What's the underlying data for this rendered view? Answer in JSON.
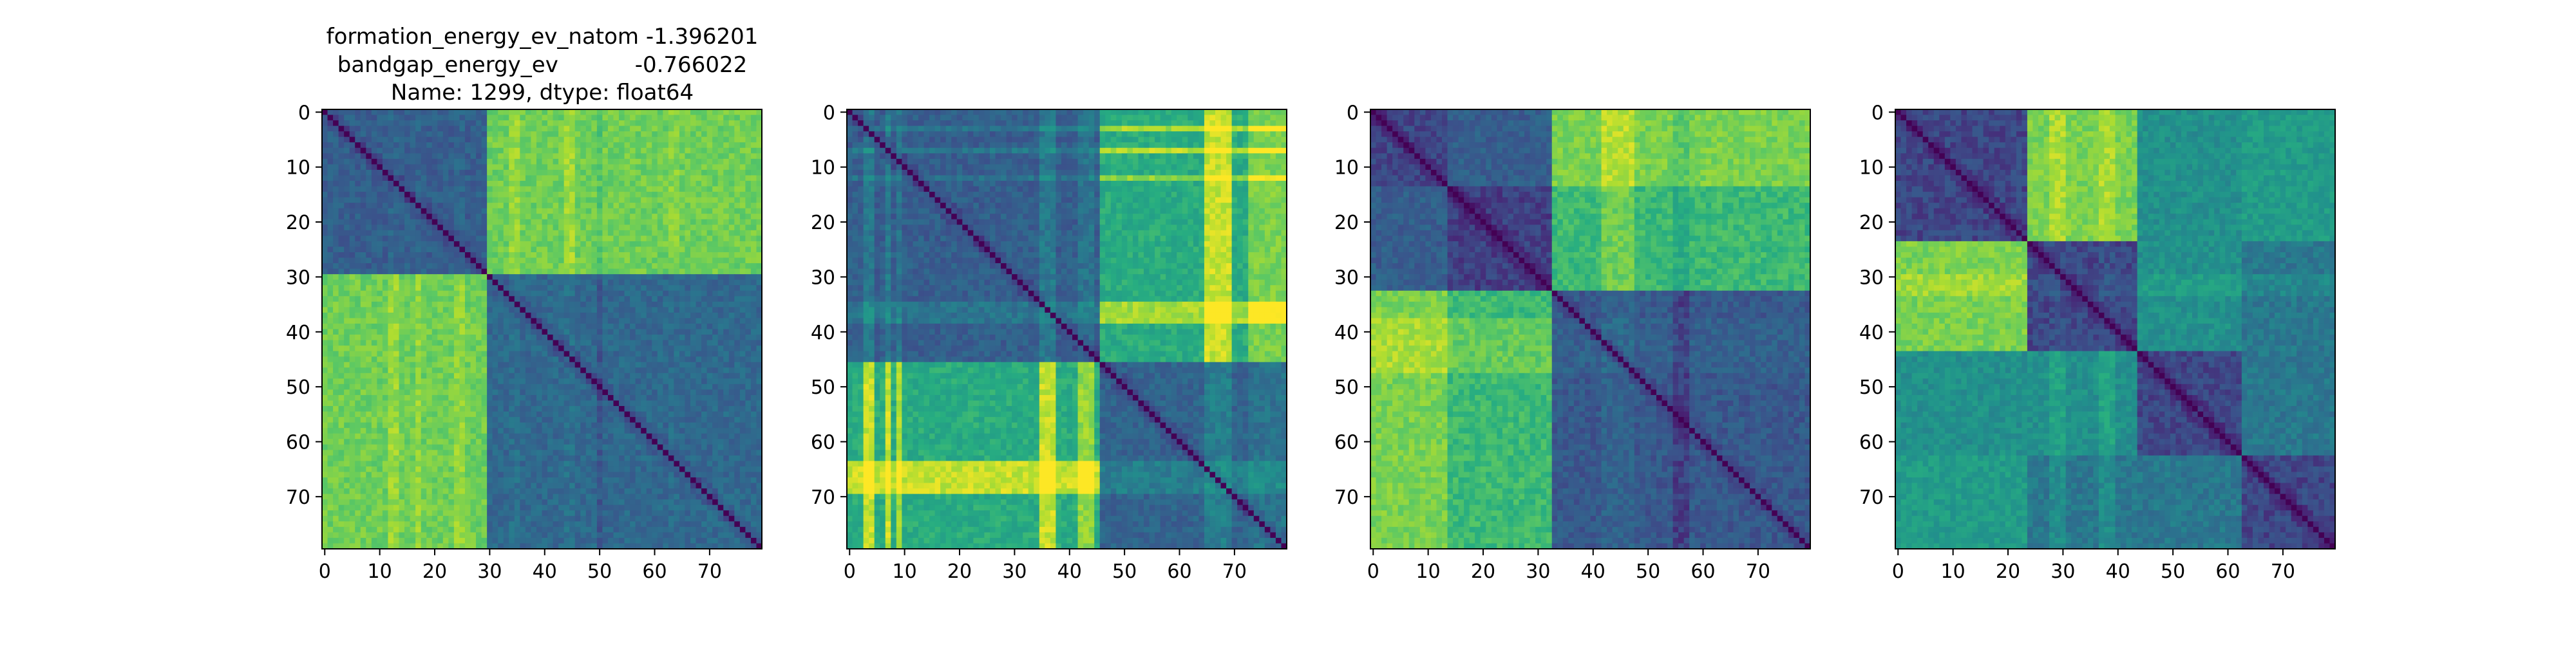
{
  "chart_data": [
    {
      "type": "heatmap",
      "title_lines": [
        "formation_energy_ev_natom   -1.396201",
        "bandgap_energy_ev           -0.766022",
        "Name: 1299, dtype: float64"
      ],
      "rows": 80,
      "cols": 80,
      "xlim": [
        0,
        80
      ],
      "ylim": [
        80,
        0
      ],
      "xticks": [
        0,
        10,
        20,
        30,
        40,
        50,
        60,
        70
      ],
      "yticks": [
        0,
        10,
        20,
        30,
        40,
        50,
        60,
        70
      ],
      "colormap": "viridis",
      "diagonal_value": 0,
      "block_boundaries": [
        30
      ],
      "block_levels": [
        [
          0.3,
          0.78
        ],
        [
          0.78,
          0.34
        ]
      ],
      "stripes": [
        {
          "axis": "col",
          "range": [
            12,
            14
          ],
          "boost": 0.07
        },
        {
          "axis": "col",
          "range": [
            17,
            18
          ],
          "boost": 0.06
        },
        {
          "axis": "col",
          "range": [
            24,
            26
          ],
          "boost": 0.06
        },
        {
          "axis": "col",
          "range": [
            34,
            36
          ],
          "boost": 0.07
        },
        {
          "axis": "col",
          "range": [
            44,
            46
          ],
          "boost": 0.08
        },
        {
          "axis": "col",
          "range": [
            50,
            51
          ],
          "boost": -0.05
        },
        {
          "axis": "col",
          "range": [
            63,
            65
          ],
          "boost": 0.04
        }
      ]
    },
    {
      "type": "heatmap",
      "title_lines": [],
      "rows": 80,
      "cols": 80,
      "xlim": [
        0,
        80
      ],
      "ylim": [
        80,
        0
      ],
      "xticks": [
        0,
        10,
        20,
        30,
        40,
        50,
        60,
        70
      ],
      "yticks": [
        0,
        10,
        20,
        30,
        40,
        50,
        60,
        70
      ],
      "colormap": "viridis",
      "diagonal_value": 0,
      "block_boundaries": [
        46
      ],
      "block_levels": [
        [
          0.3,
          0.62
        ],
        [
          0.62,
          0.32
        ]
      ],
      "stripes": [
        {
          "axis": "col",
          "range": [
            3,
            5
          ],
          "boost": 0.3
        },
        {
          "axis": "col",
          "range": [
            7,
            8
          ],
          "boost": 0.3
        },
        {
          "axis": "col",
          "range": [
            9,
            10
          ],
          "boost": 0.25
        },
        {
          "axis": "col",
          "range": [
            35,
            38
          ],
          "boost": 0.3
        },
        {
          "axis": "col",
          "range": [
            42,
            45
          ],
          "boost": 0.22
        },
        {
          "axis": "col",
          "range": [
            65,
            70
          ],
          "boost": 0.3
        },
        {
          "axis": "col",
          "range": [
            73,
            80
          ],
          "boost": 0.18
        },
        {
          "axis": "row",
          "range": [
            3,
            4
          ],
          "boost": 0.25
        },
        {
          "axis": "row",
          "range": [
            7,
            8
          ],
          "boost": 0.28
        },
        {
          "axis": "row",
          "range": [
            12,
            13
          ],
          "boost": 0.22
        },
        {
          "axis": "row",
          "range": [
            35,
            39
          ],
          "boost": 0.25
        },
        {
          "axis": "row",
          "range": [
            64,
            70
          ],
          "boost": 0.3
        }
      ]
    },
    {
      "type": "heatmap",
      "title_lines": [],
      "rows": 80,
      "cols": 80,
      "xlim": [
        0,
        80
      ],
      "ylim": [
        80,
        0
      ],
      "xticks": [
        0,
        10,
        20,
        30,
        40,
        50,
        60,
        70
      ],
      "yticks": [
        0,
        10,
        20,
        30,
        40,
        50,
        60,
        70
      ],
      "colormap": "viridis",
      "diagonal_value": 0,
      "block_boundaries": [
        14,
        33
      ],
      "block_levels": [
        [
          0.22,
          0.3,
          0.8
        ],
        [
          0.3,
          0.2,
          0.68
        ],
        [
          0.8,
          0.68,
          0.28
        ]
      ],
      "stripes": [
        {
          "axis": "col",
          "range": [
            42,
            48
          ],
          "boost": 0.1
        },
        {
          "axis": "col",
          "range": [
            55,
            58
          ],
          "boost": -0.06
        },
        {
          "axis": "row",
          "range": [
            38,
            48
          ],
          "boost": 0.08
        }
      ]
    },
    {
      "type": "heatmap",
      "title_lines": [],
      "rows": 80,
      "cols": 80,
      "xlim": [
        0,
        80
      ],
      "ylim": [
        80,
        0
      ],
      "xticks": [
        0,
        10,
        20,
        30,
        40,
        50,
        60,
        70
      ],
      "yticks": [
        0,
        10,
        20,
        30,
        40,
        50,
        60,
        70
      ],
      "colormap": "viridis",
      "diagonal_value": 0,
      "block_boundaries": [
        24,
        44,
        63
      ],
      "block_levels": [
        [
          0.22,
          0.8,
          0.5,
          0.55
        ],
        [
          0.8,
          0.22,
          0.5,
          0.4
        ],
        [
          0.5,
          0.5,
          0.22,
          0.4
        ],
        [
          0.55,
          0.4,
          0.4,
          0.22
        ]
      ],
      "stripes": [
        {
          "axis": "col",
          "range": [
            28,
            31
          ],
          "boost": 0.08
        },
        {
          "axis": "col",
          "range": [
            37,
            40
          ],
          "boost": 0.08
        },
        {
          "axis": "row",
          "range": [
            30,
            34
          ],
          "boost": 0.06
        }
      ]
    }
  ]
}
